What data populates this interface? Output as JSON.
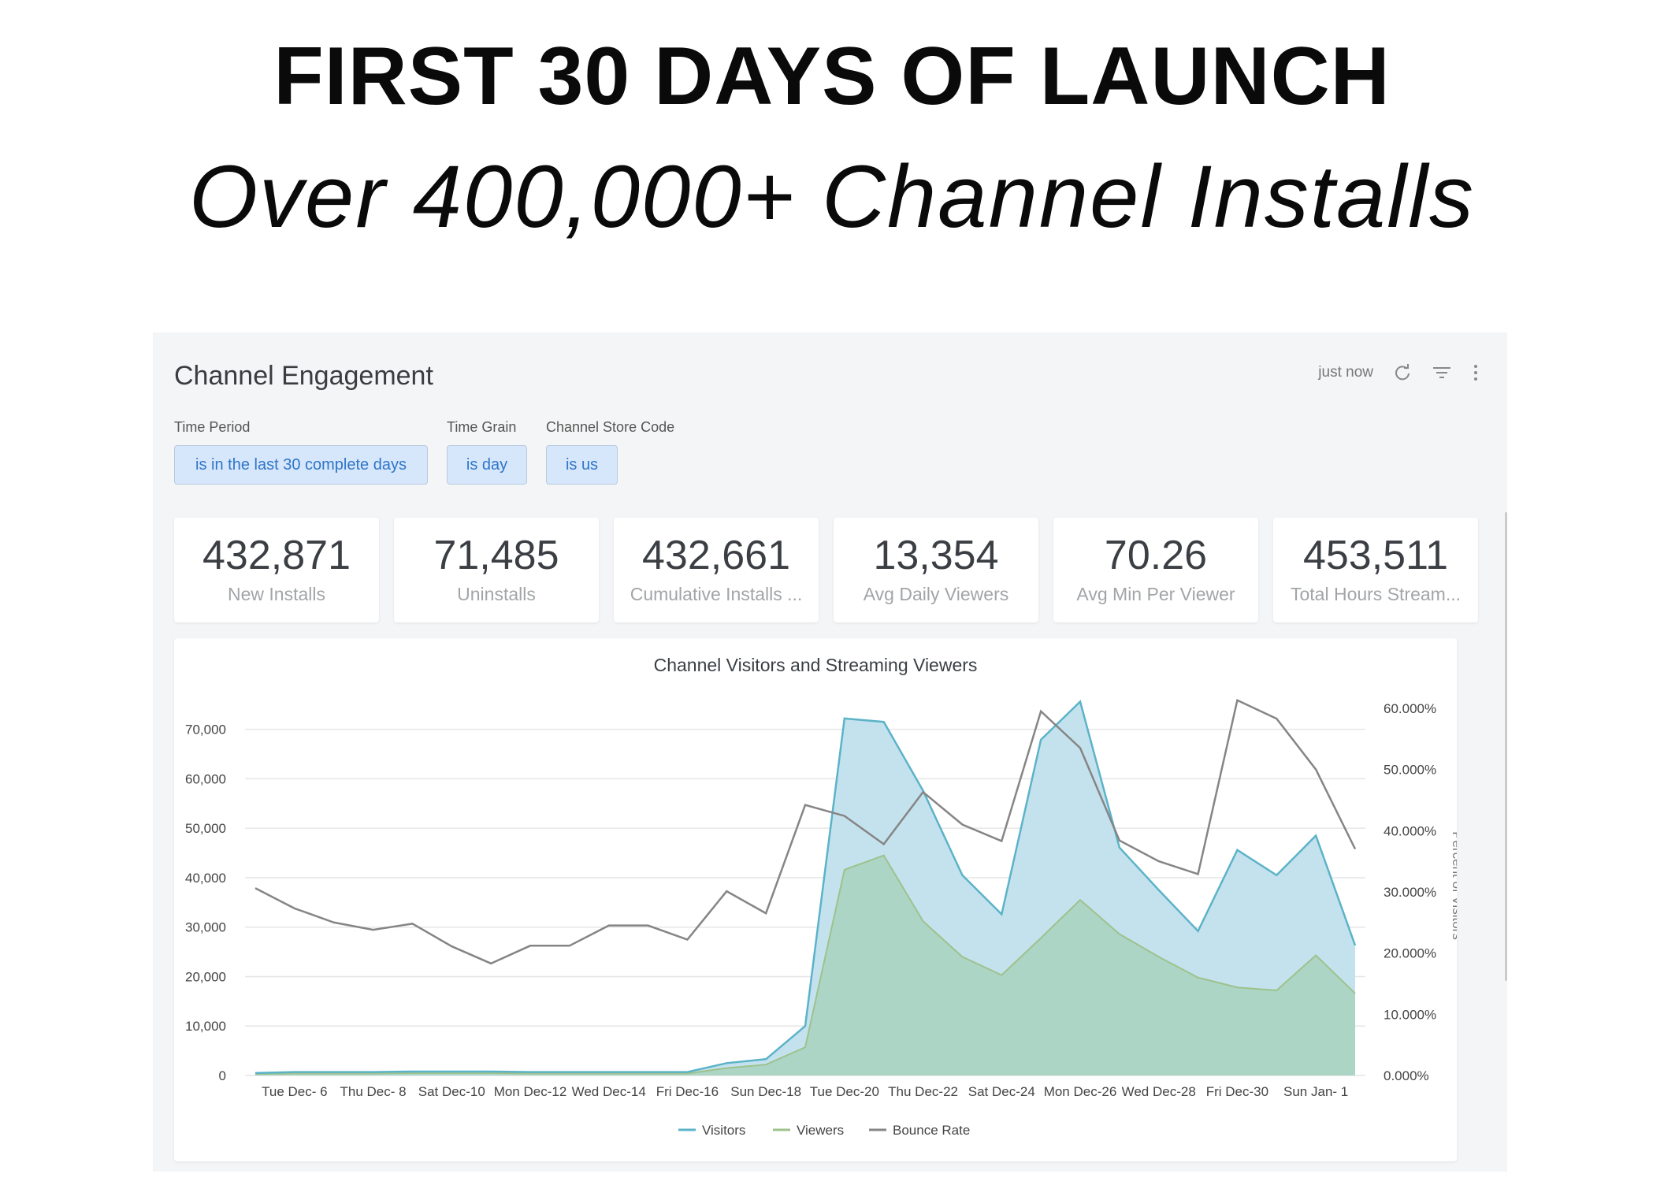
{
  "headline": "FIRST 30 DAYS OF LAUNCH",
  "subheadline": "Over 400,000+ Channel Installs",
  "panel": {
    "title": "Channel Engagement",
    "updated": "just now",
    "icons": [
      "refresh-icon",
      "filter-icon",
      "more-vertical-icon"
    ],
    "filters": [
      {
        "label": "Time Period",
        "value": "is in the last 30 complete days"
      },
      {
        "label": "Time Grain",
        "value": "is day"
      },
      {
        "label": "Channel Store Code",
        "value": "is us"
      }
    ],
    "kpis": [
      {
        "value": "432,871",
        "label": "New Installs"
      },
      {
        "value": "71,485",
        "label": "Uninstalls"
      },
      {
        "value": "432,661",
        "label": "Cumulative Installs ..."
      },
      {
        "value": "13,354",
        "label": "Avg Daily Viewers"
      },
      {
        "value": "70.26",
        "label": "Avg Min Per Viewer"
      },
      {
        "value": "453,511",
        "label": "Total Hours Stream..."
      }
    ]
  },
  "colors": {
    "visitors_line": "#5cb3c8",
    "visitors_fill": "#c4e2ee",
    "viewers_line": "#9dc28c",
    "viewers_fill": "#acd5c6",
    "bounce": "#858585",
    "grid": "#e6e6e6"
  },
  "chart_data": {
    "type": "area",
    "title": "Channel Visitors and Streaming Viewers",
    "ylabel_right": "Percent of Visitors",
    "x": [
      "Dec 5",
      "Dec 6",
      "Dec 7",
      "Dec 8",
      "Dec 9",
      "Dec 10",
      "Dec 11",
      "Dec 12",
      "Dec 13",
      "Dec 14",
      "Dec 15",
      "Dec 16",
      "Dec 17",
      "Dec 18",
      "Dec 19",
      "Dec 20",
      "Dec 21",
      "Dec 22",
      "Dec 23",
      "Dec 24",
      "Dec 25",
      "Dec 26",
      "Dec 27",
      "Dec 28",
      "Dec 29",
      "Dec 30",
      "Dec 31",
      "Jan 1",
      "Jan 2"
    ],
    "xtick_labels": [
      "Tue Dec- 6",
      "Thu Dec- 8",
      "Sat Dec-10",
      "Mon Dec-12",
      "Wed Dec-14",
      "Fri Dec-16",
      "Sun Dec-18",
      "Tue Dec-20",
      "Thu Dec-22",
      "Sat Dec-24",
      "Mon Dec-26",
      "Wed Dec-28",
      "Fri Dec-30",
      "Sun Jan- 1"
    ],
    "yticks_left": [
      "0",
      "10,000",
      "20,000",
      "30,000",
      "40,000",
      "50,000",
      "60,000",
      "70,000"
    ],
    "yticks_right": [
      "0.000%",
      "10.000%",
      "20.000%",
      "30.000%",
      "40.000%",
      "50.000%",
      "60.000%"
    ],
    "ylim_left": [
      0,
      76000
    ],
    "ylim_right": [
      0,
      61.4
    ],
    "grid": true,
    "legend_position": "bottom",
    "series": [
      {
        "name": "Visitors",
        "axis": "left",
        "values": [
          500,
          700,
          700,
          700,
          800,
          800,
          800,
          700,
          700,
          700,
          700,
          700,
          2500,
          3300,
          10000,
          72200,
          71500,
          57600,
          40500,
          32600,
          67900,
          75600,
          46100,
          37500,
          29200,
          45600,
          40500,
          48500,
          26300
        ]
      },
      {
        "name": "Viewers",
        "axis": "left",
        "values": [
          300,
          400,
          400,
          400,
          500,
          500,
          500,
          400,
          400,
          400,
          400,
          400,
          1500,
          2200,
          5700,
          41600,
          44500,
          31200,
          24000,
          20300,
          27800,
          35500,
          28600,
          24000,
          19800,
          17800,
          17200,
          24300,
          16600
        ]
      },
      {
        "name": "Bounce Rate",
        "axis": "right",
        "values": [
          30.6,
          27.3,
          25.0,
          23.8,
          24.8,
          21.1,
          18.3,
          21.2,
          21.2,
          24.5,
          24.5,
          22.2,
          30.1,
          26.5,
          44.2,
          42.4,
          37.8,
          46.3,
          41.0,
          38.3,
          59.5,
          53.5,
          38.4,
          35.0,
          32.9,
          61.3,
          58.3,
          50.0,
          37.0
        ]
      }
    ]
  }
}
